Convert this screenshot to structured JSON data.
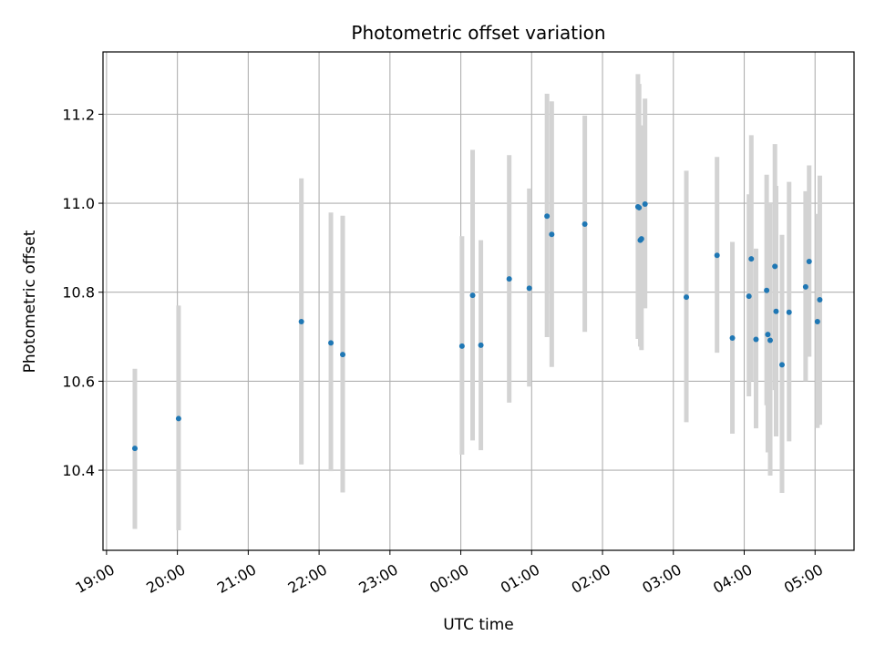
{
  "chart_data": {
    "type": "scatter",
    "title": "Photometric offset variation",
    "xlabel": "UTC time",
    "ylabel": "Photometric offset",
    "x_axis_kind": "time",
    "x_range": [
      "18:57",
      "05:33"
    ],
    "ylim": [
      10.22,
      11.34
    ],
    "x_ticks": [
      "19:00",
      "20:00",
      "21:00",
      "22:00",
      "23:00",
      "00:00",
      "01:00",
      "02:00",
      "03:00",
      "04:00",
      "05:00"
    ],
    "y_ticks": [
      10.4,
      10.6,
      10.8,
      11.0,
      11.2
    ],
    "y_tick_labels": [
      "10.4",
      "10.6",
      "10.8",
      "11.0",
      "11.2"
    ],
    "grid": true,
    "marker_color": "#1f77b4",
    "errorbar_color": "#d3d3d3",
    "points": [
      {
        "t": "19:24",
        "y": 10.449,
        "lo": 10.268,
        "hi": 10.628
      },
      {
        "t": "20:01",
        "y": 10.516,
        "lo": 10.265,
        "hi": 10.77
      },
      {
        "t": "21:45",
        "y": 10.734,
        "lo": 10.413,
        "hi": 11.056
      },
      {
        "t": "22:10",
        "y": 10.686,
        "lo": 10.398,
        "hi": 10.979
      },
      {
        "t": "22:20",
        "y": 10.66,
        "lo": 10.35,
        "hi": 10.972
      },
      {
        "t": "00:01",
        "y": 10.679,
        "lo": 10.435,
        "hi": 10.926
      },
      {
        "t": "00:10",
        "y": 10.793,
        "lo": 10.467,
        "hi": 11.12
      },
      {
        "t": "00:17",
        "y": 10.681,
        "lo": 10.445,
        "hi": 10.917
      },
      {
        "t": "00:41",
        "y": 10.83,
        "lo": 10.552,
        "hi": 11.108
      },
      {
        "t": "00:58",
        "y": 10.809,
        "lo": 10.588,
        "hi": 11.033
      },
      {
        "t": "01:13",
        "y": 10.971,
        "lo": 10.699,
        "hi": 11.246
      },
      {
        "t": "01:17",
        "y": 10.93,
        "lo": 10.632,
        "hi": 11.229
      },
      {
        "t": "01:45",
        "y": 10.953,
        "lo": 10.711,
        "hi": 11.197
      },
      {
        "t": "02:30",
        "y": 10.992,
        "lo": 10.695,
        "hi": 11.29
      },
      {
        "t": "02:31",
        "y": 10.99,
        "lo": 10.702,
        "hi": 11.268
      },
      {
        "t": "02:32",
        "y": 10.917,
        "lo": 10.678,
        "hi": 11.161
      },
      {
        "t": "02:33",
        "y": 10.92,
        "lo": 10.67,
        "hi": 11.175
      },
      {
        "t": "02:36",
        "y": 10.998,
        "lo": 10.764,
        "hi": 11.235
      },
      {
        "t": "03:11",
        "y": 10.789,
        "lo": 10.508,
        "hi": 11.073
      },
      {
        "t": "03:37",
        "y": 10.883,
        "lo": 10.664,
        "hi": 11.104
      },
      {
        "t": "03:50",
        "y": 10.697,
        "lo": 10.482,
        "hi": 10.913
      },
      {
        "t": "04:04",
        "y": 10.791,
        "lo": 10.566,
        "hi": 11.02
      },
      {
        "t": "04:06",
        "y": 10.875,
        "lo": 10.6,
        "hi": 11.153
      },
      {
        "t": "04:10",
        "y": 10.694,
        "lo": 10.494,
        "hi": 10.898
      },
      {
        "t": "04:19",
        "y": 10.804,
        "lo": 10.546,
        "hi": 11.064
      },
      {
        "t": "04:20",
        "y": 10.705,
        "lo": 10.44,
        "hi": 10.97
      },
      {
        "t": "04:22",
        "y": 10.692,
        "lo": 10.388,
        "hi": 11.0
      },
      {
        "t": "04:26",
        "y": 10.858,
        "lo": 10.58,
        "hi": 11.133
      },
      {
        "t": "04:27",
        "y": 10.757,
        "lo": 10.476,
        "hi": 11.039
      },
      {
        "t": "04:32",
        "y": 10.637,
        "lo": 10.349,
        "hi": 10.929
      },
      {
        "t": "04:38",
        "y": 10.755,
        "lo": 10.465,
        "hi": 11.048
      },
      {
        "t": "04:52",
        "y": 10.812,
        "lo": 10.6,
        "hi": 11.027
      },
      {
        "t": "04:55",
        "y": 10.869,
        "lo": 10.655,
        "hi": 11.085
      },
      {
        "t": "05:02",
        "y": 10.734,
        "lo": 10.495,
        "hi": 10.976
      },
      {
        "t": "05:04",
        "y": 10.783,
        "lo": 10.502,
        "hi": 11.062
      }
    ]
  }
}
